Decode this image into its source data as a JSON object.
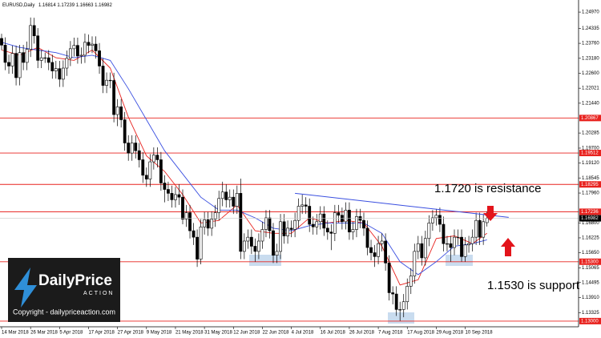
{
  "chart_data": {
    "type": "candlestick",
    "title": "EURUSD,Daily",
    "categories": [
      "14 Mar 2018",
      null,
      null,
      null,
      null,
      null,
      null,
      null,
      "26 Mar 2018",
      null,
      null,
      null,
      null,
      null,
      null,
      null,
      "5 Apr 2018",
      null,
      null,
      null,
      null,
      null,
      null,
      null,
      "17 Apr 2018",
      null,
      null,
      null,
      null,
      null,
      null,
      null,
      "27 Apr 2018",
      null,
      null,
      null,
      null,
      null,
      null,
      null,
      "9 May 2018",
      null,
      null,
      null,
      null,
      null,
      null,
      null,
      "21 May 2018",
      null,
      null,
      null,
      null,
      null,
      null,
      null,
      "31 May 2018",
      null,
      null,
      null,
      null,
      null,
      null,
      null,
      "12 Jun 2018",
      null,
      null,
      null,
      null,
      null,
      null,
      null,
      "22 Jun 2018",
      null,
      null,
      null,
      null,
      null,
      null,
      null,
      "4 Jul 2018",
      null,
      null,
      null,
      null,
      null,
      null,
      null,
      "16 Jul 2018",
      null,
      null,
      null,
      null,
      null,
      null,
      null,
      "26 Jul 2018",
      null,
      null,
      null,
      null,
      null,
      null,
      null,
      "7 Aug 2018",
      null,
      null,
      null,
      null,
      null,
      null,
      null,
      "17 Aug 2018",
      null,
      null,
      null,
      null,
      null,
      null,
      null,
      "29 Aug 2018",
      null,
      null,
      null,
      null,
      null,
      null,
      null,
      "10 Sep 2018",
      null,
      null,
      null,
      null,
      null,
      null
    ],
    "ohlc": [
      [
        1.2395,
        1.2413,
        1.235,
        1.2369
      ],
      [
        1.2369,
        1.2399,
        1.2272,
        1.2302
      ],
      [
        1.2302,
        1.2332,
        1.2258,
        1.2288
      ],
      [
        1.2288,
        1.2367,
        1.2258,
        1.2337
      ],
      [
        1.2337,
        1.2367,
        1.2213,
        1.2243
      ],
      [
        1.2243,
        1.237,
        1.2213,
        1.234
      ],
      [
        1.234,
        1.237,
        1.2272,
        1.2302
      ],
      [
        1.2302,
        1.2383,
        1.2272,
        1.2353
      ],
      [
        1.2353,
        1.2476,
        1.2323,
        1.2445
      ],
      [
        1.2445,
        1.2475,
        1.2375,
        1.2405
      ],
      [
        1.2405,
        1.2435,
        1.228,
        1.231
      ],
      [
        1.231,
        1.235,
        1.228,
        1.232
      ],
      [
        1.232,
        1.234,
        1.23,
        1.232
      ],
      [
        1.232,
        1.235,
        1.2272,
        1.2302
      ],
      [
        1.2302,
        1.2332,
        1.2239,
        1.2269
      ],
      [
        1.2269,
        1.2308,
        1.2239,
        1.2278
      ],
      [
        1.2278,
        1.2308,
        1.2207,
        1.2237
      ],
      [
        1.2237,
        1.231,
        1.2207,
        1.228
      ],
      [
        1.228,
        1.2348,
        1.225,
        1.2318
      ],
      [
        1.2318,
        1.2385,
        1.2288,
        1.2355
      ],
      [
        1.2355,
        1.2398,
        1.2325,
        1.2368
      ],
      [
        1.2368,
        1.2398,
        1.2297,
        1.2327
      ],
      [
        1.2327,
        1.236,
        1.2297,
        1.233
      ],
      [
        1.233,
        1.2414,
        1.23,
        1.238
      ],
      [
        1.238,
        1.241,
        1.2338,
        1.2368
      ],
      [
        1.2368,
        1.2403,
        1.2338,
        1.2373
      ],
      [
        1.2373,
        1.2403,
        1.2317,
        1.2347
      ],
      [
        1.2347,
        1.2377,
        1.2258,
        1.2288
      ],
      [
        1.2288,
        1.2318,
        1.2183,
        1.2213
      ],
      [
        1.2213,
        1.2263,
        1.2183,
        1.2233
      ],
      [
        1.2233,
        1.2263,
        1.2202,
        1.2232
      ],
      [
        1.2232,
        1.2262,
        1.207,
        1.21
      ],
      [
        1.21,
        1.216,
        1.2055,
        1.213
      ],
      [
        1.213,
        1.216,
        1.205,
        1.208
      ],
      [
        1.208,
        1.211,
        1.196,
        1.199
      ],
      [
        1.199,
        1.202,
        1.1921,
        1.1951
      ],
      [
        1.1951,
        1.202,
        1.1921,
        1.199
      ],
      [
        1.199,
        1.202,
        1.193,
        1.196
      ],
      [
        1.196,
        1.199,
        1.1895,
        1.1925
      ],
      [
        1.1925,
        1.1955,
        1.1835,
        1.1865
      ],
      [
        1.1865,
        1.1895,
        1.182,
        1.185
      ],
      [
        1.185,
        1.1947,
        1.182,
        1.1917
      ],
      [
        1.1917,
        1.1973,
        1.1887,
        1.1943
      ],
      [
        1.1943,
        1.1973,
        1.1895,
        1.1925
      ],
      [
        1.1925,
        1.1955,
        1.1805,
        1.1835
      ],
      [
        1.1835,
        1.1865,
        1.176,
        1.181
      ],
      [
        1.181,
        1.184,
        1.1765,
        1.1795
      ],
      [
        1.1795,
        1.1825,
        1.174,
        1.177
      ],
      [
        1.177,
        1.182,
        1.174,
        1.179
      ],
      [
        1.179,
        1.183,
        1.175,
        1.178
      ],
      [
        1.178,
        1.181,
        1.1675,
        1.1695
      ],
      [
        1.1695,
        1.175,
        1.1665,
        1.172
      ],
      [
        1.172,
        1.175,
        1.162,
        1.165
      ],
      [
        1.165,
        1.168,
        1.1595,
        1.1625
      ],
      [
        1.1625,
        1.1655,
        1.151,
        1.154
      ],
      [
        1.154,
        1.1695,
        1.152,
        1.1665
      ],
      [
        1.1665,
        1.1723,
        1.1635,
        1.1693
      ],
      [
        1.1693,
        1.1723,
        1.163,
        1.166
      ],
      [
        1.166,
        1.1725,
        1.163,
        1.1695
      ],
      [
        1.1695,
        1.175,
        1.1665,
        1.172
      ],
      [
        1.172,
        1.1805,
        1.169,
        1.1775
      ],
      [
        1.1775,
        1.184,
        1.1745,
        1.18
      ],
      [
        1.18,
        1.183,
        1.174,
        1.177
      ],
      [
        1.177,
        1.181,
        1.174,
        1.178
      ],
      [
        1.178,
        1.181,
        1.1715,
        1.1745
      ],
      [
        1.1745,
        1.1825,
        1.1715,
        1.1795
      ],
      [
        1.1795,
        1.1852,
        1.154,
        1.157
      ],
      [
        1.157,
        1.164,
        1.154,
        1.161
      ],
      [
        1.161,
        1.1655,
        1.158,
        1.1625
      ],
      [
        1.1625,
        1.1655,
        1.156,
        1.159
      ],
      [
        1.159,
        1.162,
        1.153,
        1.157
      ],
      [
        1.157,
        1.164,
        1.154,
        1.161
      ],
      [
        1.161,
        1.1685,
        1.158,
        1.1655
      ],
      [
        1.1655,
        1.173,
        1.1625,
        1.17
      ],
      [
        1.17,
        1.173,
        1.162,
        1.165
      ],
      [
        1.165,
        1.168,
        1.1525,
        1.1555
      ],
      [
        1.1555,
        1.16,
        1.1525,
        1.157
      ],
      [
        1.157,
        1.1715,
        1.154,
        1.1685
      ],
      [
        1.1685,
        1.1715,
        1.16,
        1.163
      ],
      [
        1.163,
        1.169,
        1.16,
        1.166
      ],
      [
        1.166,
        1.169,
        1.1625,
        1.1655
      ],
      [
        1.1655,
        1.172,
        1.1625,
        1.169
      ],
      [
        1.169,
        1.1775,
        1.166,
        1.1745
      ],
      [
        1.1745,
        1.179,
        1.1715,
        1.175
      ],
      [
        1.175,
        1.178,
        1.1715,
        1.1745
      ],
      [
        1.1745,
        1.1775,
        1.1645,
        1.1675
      ],
      [
        1.1675,
        1.1705,
        1.1635,
        1.1665
      ],
      [
        1.1665,
        1.1715,
        1.1635,
        1.1685
      ],
      [
        1.1685,
        1.1745,
        1.1655,
        1.1715
      ],
      [
        1.1715,
        1.1745,
        1.163,
        1.166
      ],
      [
        1.166,
        1.169,
        1.1615,
        1.1645
      ],
      [
        1.1645,
        1.1675,
        1.1575,
        1.164
      ],
      [
        1.164,
        1.175,
        1.161,
        1.172
      ],
      [
        1.172,
        1.175,
        1.168,
        1.171
      ],
      [
        1.171,
        1.174,
        1.1655,
        1.1685
      ],
      [
        1.1685,
        1.176,
        1.1655,
        1.173
      ],
      [
        1.173,
        1.176,
        1.1615,
        1.1645
      ],
      [
        1.1645,
        1.1685,
        1.1615,
        1.1655
      ],
      [
        1.1655,
        1.1735,
        1.1625,
        1.1705
      ],
      [
        1.1705,
        1.1735,
        1.166,
        1.169
      ],
      [
        1.169,
        1.172,
        1.163,
        1.166
      ],
      [
        1.166,
        1.169,
        1.1555,
        1.1585
      ],
      [
        1.1585,
        1.1615,
        1.1535,
        1.1565
      ],
      [
        1.1565,
        1.1595,
        1.151,
        1.155
      ],
      [
        1.155,
        1.163,
        1.152,
        1.16
      ],
      [
        1.16,
        1.164,
        1.157,
        1.161
      ],
      [
        1.161,
        1.164,
        1.1495,
        1.1525
      ],
      [
        1.1525,
        1.1555,
        1.138,
        1.141
      ],
      [
        1.141,
        1.1435,
        1.1365,
        1.1405
      ],
      [
        1.1405,
        1.1435,
        1.132,
        1.1345
      ],
      [
        1.1345,
        1.1375,
        1.1301,
        1.1345
      ],
      [
        1.1345,
        1.1405,
        1.1315,
        1.1375
      ],
      [
        1.1375,
        1.1465,
        1.1345,
        1.1435
      ],
      [
        1.1435,
        1.1505,
        1.1405,
        1.1475
      ],
      [
        1.1475,
        1.16,
        1.1445,
        1.157
      ],
      [
        1.157,
        1.163,
        1.154,
        1.16
      ],
      [
        1.16,
        1.163,
        1.1515,
        1.1545
      ],
      [
        1.1545,
        1.165,
        1.1515,
        1.162
      ],
      [
        1.162,
        1.171,
        1.159,
        1.168
      ],
      [
        1.168,
        1.173,
        1.165,
        1.17
      ],
      [
        1.17,
        1.1735,
        1.167,
        1.171
      ],
      [
        1.171,
        1.174,
        1.1645,
        1.1675
      ],
      [
        1.1675,
        1.1705,
        1.157,
        1.16
      ],
      [
        1.16,
        1.163,
        1.157,
        1.16
      ],
      [
        1.16,
        1.163,
        1.153,
        1.1585
      ],
      [
        1.1585,
        1.1655,
        1.1555,
        1.1625
      ],
      [
        1.1625,
        1.1655,
        1.1595,
        1.1625
      ],
      [
        1.1625,
        1.1655,
        1.153,
        1.155
      ],
      [
        1.155,
        1.1625,
        1.153,
        1.1595
      ],
      [
        1.1595,
        1.163,
        1.1565,
        1.16
      ],
      [
        1.16,
        1.1655,
        1.157,
        1.1625
      ],
      [
        1.1625,
        1.172,
        1.1595,
        1.169
      ],
      [
        1.169,
        1.172,
        1.1595,
        1.1625
      ],
      [
        1.1625,
        1.1715,
        1.1595,
        1.1685
      ],
      [
        1.16814,
        1.17239,
        1.16663,
        1.16982
      ]
    ],
    "ma": [
      {
        "color": "#e8231f",
        "x": [
          0,
          5,
          10,
          15,
          20,
          25,
          30,
          35,
          40,
          45,
          50,
          55,
          60,
          65,
          70,
          75,
          80,
          85,
          90,
          95,
          100,
          105,
          110,
          115,
          120,
          125,
          130,
          134
        ],
        "values": [
          1.235,
          1.233,
          1.236,
          1.232,
          1.231,
          1.235,
          1.228,
          1.209,
          1.194,
          1.188,
          1.179,
          1.168,
          1.169,
          1.175,
          1.165,
          1.164,
          1.164,
          1.17,
          1.168,
          1.169,
          1.168,
          1.159,
          1.144,
          1.146,
          1.162,
          1.163,
          1.16,
          1.164
        ]
      },
      {
        "color": "#3a4fe0",
        "x": [
          0,
          5,
          10,
          15,
          20,
          25,
          30,
          35,
          40,
          45,
          50,
          55,
          60,
          65,
          70,
          75,
          80,
          85,
          90,
          95,
          100,
          105,
          110,
          115,
          120,
          125,
          130,
          134
        ],
        "values": [
          1.238,
          1.236,
          1.235,
          1.234,
          1.232,
          1.233,
          1.231,
          1.22,
          1.208,
          1.196,
          1.187,
          1.178,
          1.173,
          1.173,
          1.17,
          1.166,
          1.165,
          1.167,
          1.168,
          1.168,
          1.168,
          1.164,
          1.153,
          1.148,
          1.153,
          1.159,
          1.16,
          1.1615
        ]
      }
    ],
    "trendline": {
      "color": "#3a4fe0",
      "x": [
        81,
        140
      ],
      "values": [
        1.1795,
        1.1702
      ]
    },
    "levels": [
      1.20867,
      1.19512,
      1.18295,
      1.17236,
      {
        "value": 1.153,
        "label": "1.15300"
      },
      {
        "value": 1.13,
        "label": "1.13000"
      }
    ],
    "level_color": "#e8231f",
    "ylim": [
      1.1278,
      1.2519
    ],
    "yticks": [
      {
        "value": 1.2497,
        "label": "1.24970"
      },
      1.24335,
      {
        "value": 1.2376,
        "label": "1.23760"
      },
      {
        "value": 1.2318,
        "label": "1.23180"
      },
      {
        "value": 1.226,
        "label": "1.22600"
      },
      1.22021,
      {
        "value": 1.2144,
        "label": "1.21440"
      },
      1.20285,
      {
        "value": 1.197,
        "label": "1.19700"
      },
      {
        "value": 1.1912,
        "label": "1.19120"
      },
      1.18545,
      {
        "value": 1.1796,
        "label": "1.17960"
      },
      {
        "value": 1.168,
        "label": "1.16800"
      },
      1.16225,
      {
        "value": 1.1565,
        "label": "1.15650"
      },
      1.15065,
      1.14495,
      {
        "value": 1.1391,
        "label": "1.13910"
      },
      1.13325
    ],
    "annotations": [
      "1.1720 is resistance",
      "1.1530 is support"
    ],
    "watermark": {
      "brand": "Daily",
      "brand2": "Price",
      "tag": "ACTION",
      "copyright": "Copyright - dailypriceaction.com"
    }
  }
}
